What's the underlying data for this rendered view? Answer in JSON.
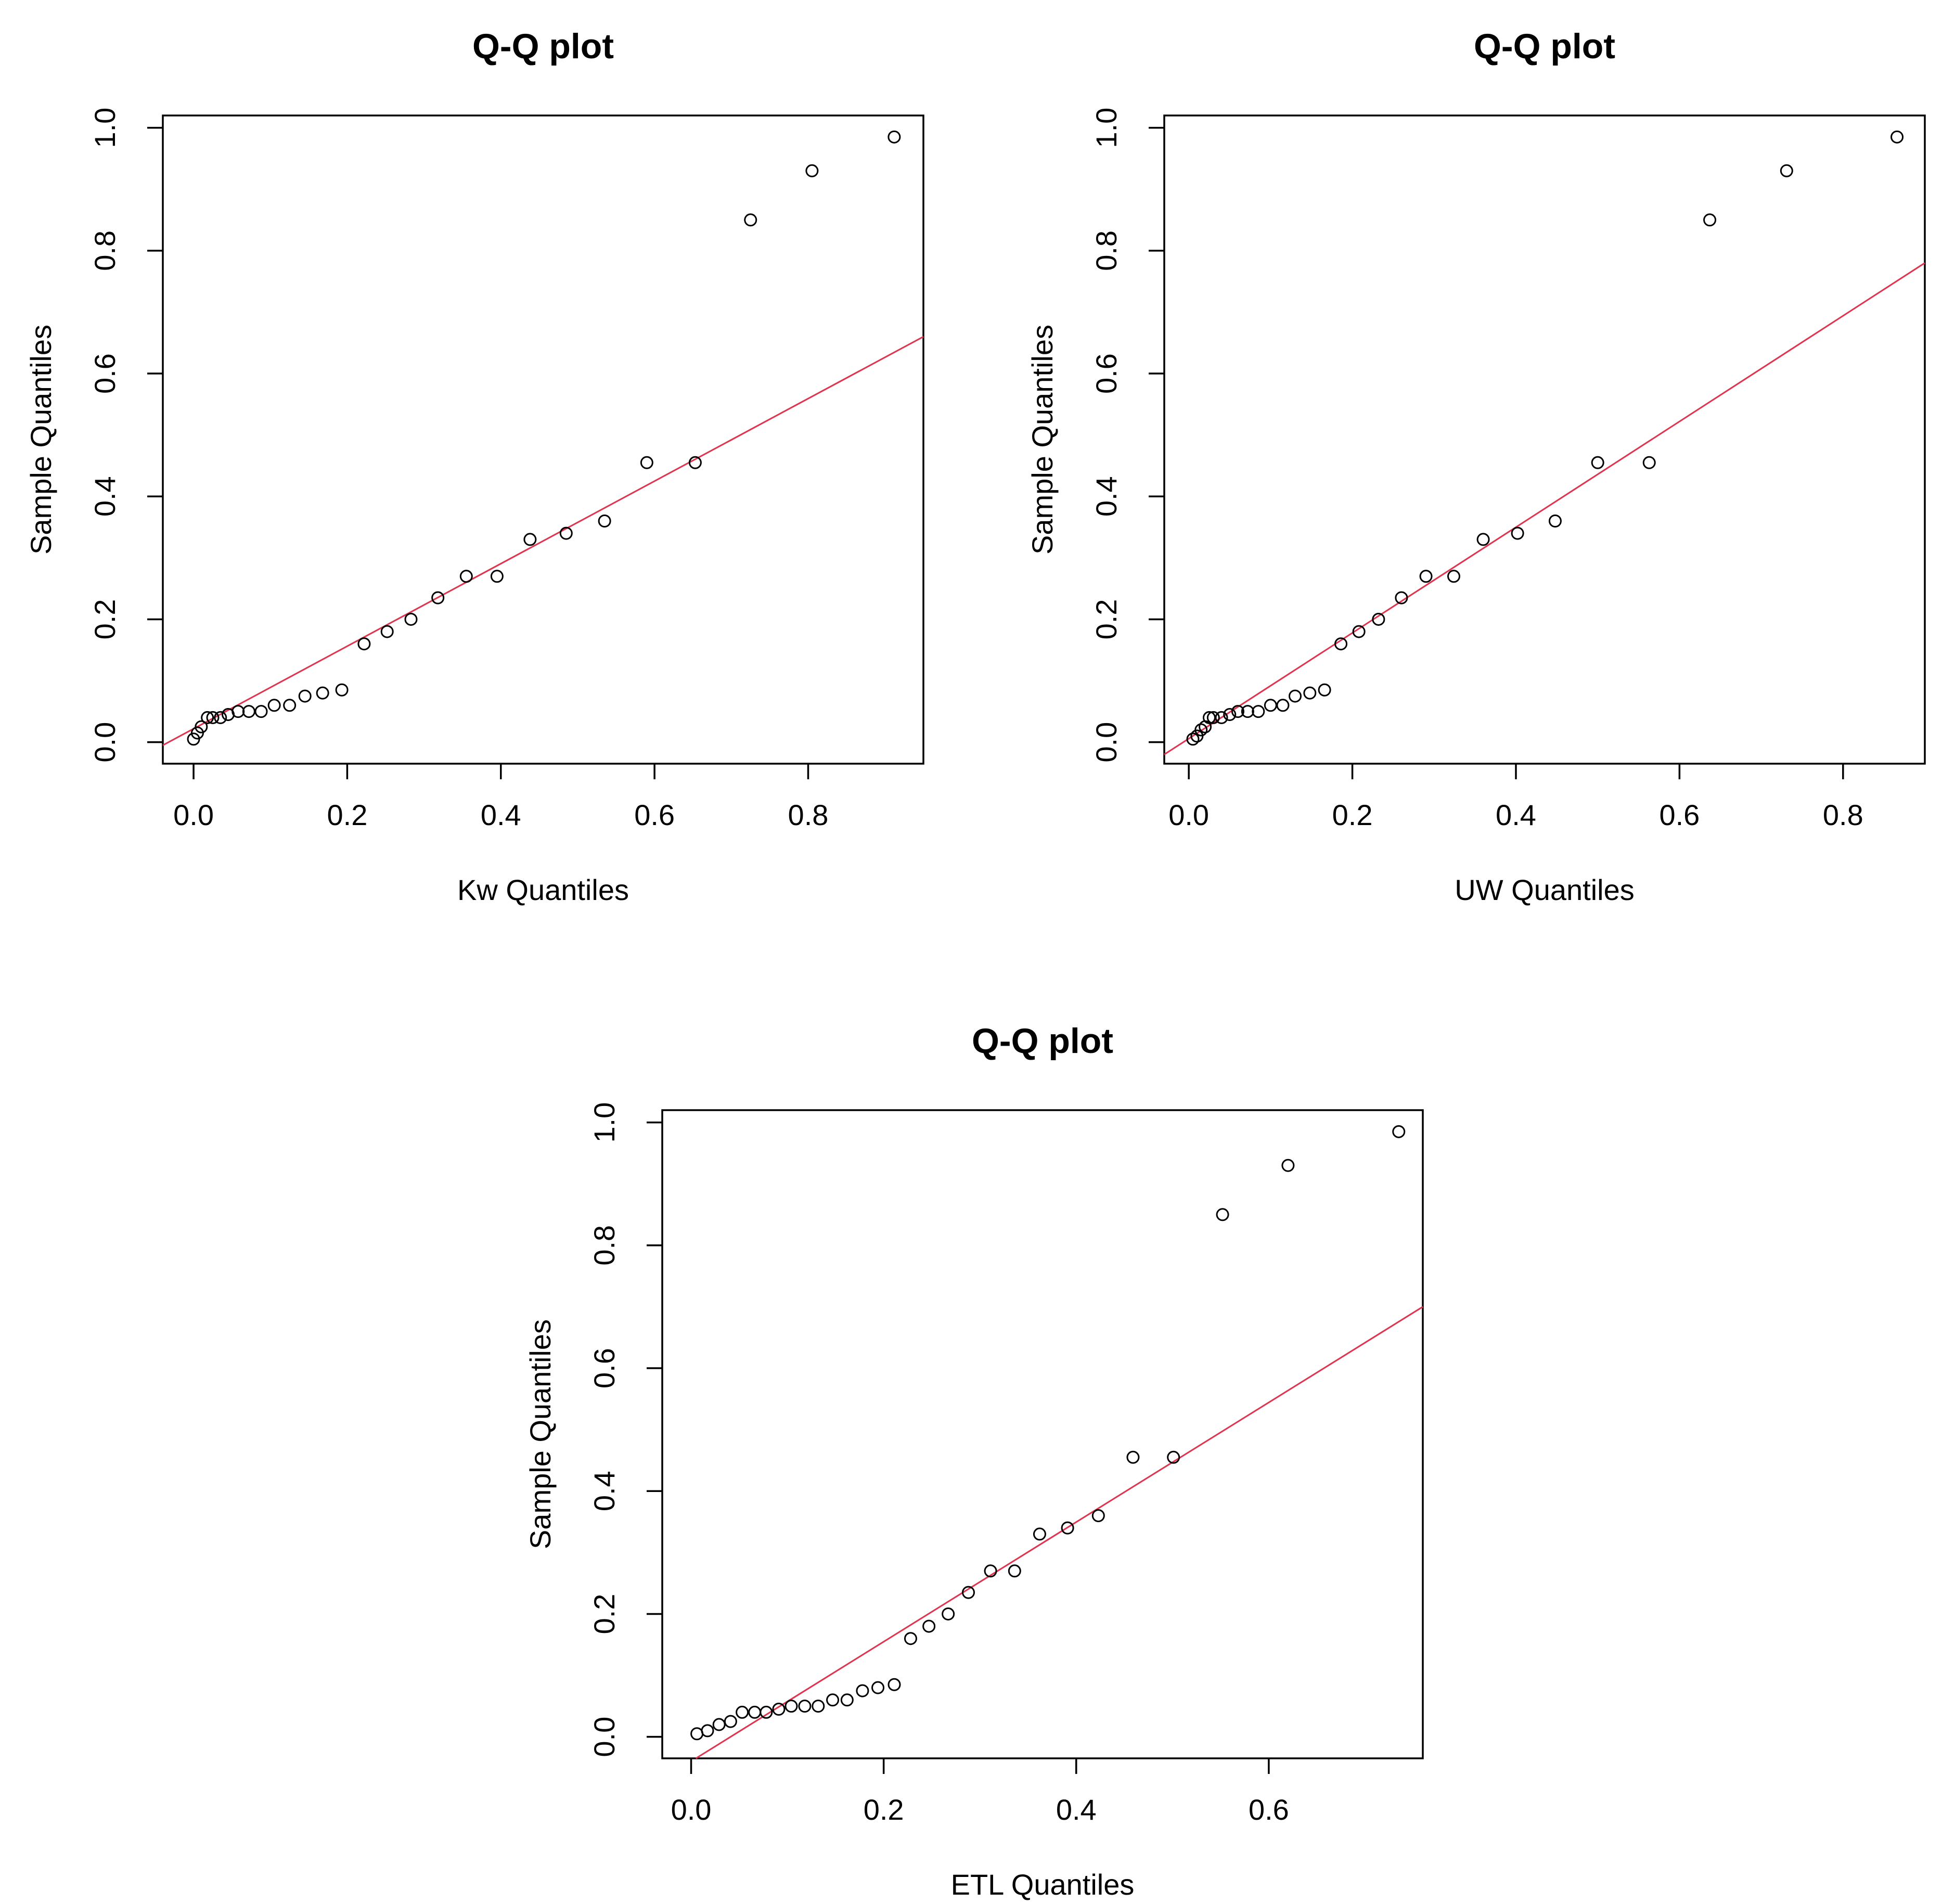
{
  "chart_data": [
    {
      "type": "scatter",
      "title": "Q-Q plot",
      "xlabel": "Kw Quantiles",
      "ylabel": "Sample Quantiles",
      "xlim": [
        -0.04,
        0.95
      ],
      "ylim": [
        -0.035,
        1.02
      ],
      "xticks": [
        "0.0",
        "0.2",
        "0.4",
        "0.6",
        "0.8"
      ],
      "yticks": [
        "0.0",
        "0.2",
        "0.4",
        "0.6",
        "0.8",
        "1.0"
      ],
      "grid": false,
      "reference_line": {
        "color": "#e0334e",
        "x": [
          -0.04,
          0.95
        ],
        "y": [
          -0.005,
          0.66
        ]
      },
      "points": {
        "x": [
          0.0,
          0.005,
          0.01,
          0.018,
          0.025,
          0.035,
          0.045,
          0.058,
          0.072,
          0.088,
          0.105,
          0.125,
          0.145,
          0.168,
          0.193,
          0.222,
          0.252,
          0.283,
          0.318,
          0.355,
          0.395,
          0.438,
          0.485,
          0.535,
          0.59,
          0.653,
          0.725,
          0.805,
          0.912
        ],
        "y": [
          0.005,
          0.015,
          0.025,
          0.04,
          0.04,
          0.04,
          0.045,
          0.05,
          0.05,
          0.05,
          0.06,
          0.06,
          0.075,
          0.08,
          0.085,
          0.16,
          0.18,
          0.2,
          0.235,
          0.27,
          0.27,
          0.33,
          0.34,
          0.36,
          0.455,
          0.455,
          0.85,
          0.93,
          0.985
        ]
      }
    },
    {
      "type": "scatter",
      "title": "Q-Q plot",
      "xlabel": "UW Quantiles",
      "ylabel": "Sample Quantiles",
      "xlim": [
        -0.03,
        0.9
      ],
      "ylim": [
        -0.035,
        1.02
      ],
      "xticks": [
        "0.0",
        "0.2",
        "0.4",
        "0.6",
        "0.8"
      ],
      "yticks": [
        "0.0",
        "0.2",
        "0.4",
        "0.6",
        "0.8",
        "1.0"
      ],
      "grid": false,
      "reference_line": {
        "color": "#e0334e",
        "x": [
          -0.03,
          0.9
        ],
        "y": [
          -0.02,
          0.78
        ]
      },
      "points": {
        "x": [
          0.005,
          0.01,
          0.015,
          0.02,
          0.025,
          0.03,
          0.04,
          0.05,
          0.06,
          0.072,
          0.085,
          0.1,
          0.115,
          0.13,
          0.148,
          0.166,
          0.186,
          0.208,
          0.232,
          0.26,
          0.29,
          0.324,
          0.36,
          0.402,
          0.448,
          0.5,
          0.563,
          0.637,
          0.731,
          0.866
        ],
        "y": [
          0.005,
          0.01,
          0.02,
          0.025,
          0.04,
          0.04,
          0.04,
          0.045,
          0.05,
          0.05,
          0.05,
          0.06,
          0.06,
          0.075,
          0.08,
          0.085,
          0.16,
          0.18,
          0.2,
          0.235,
          0.27,
          0.27,
          0.33,
          0.34,
          0.36,
          0.455,
          0.455,
          0.85,
          0.93,
          0.985
        ]
      }
    },
    {
      "type": "scatter",
      "title": "Q-Q plot",
      "xlabel": "ETL Quantiles",
      "ylabel": "Sample Quantiles",
      "xlim": [
        -0.03,
        0.76
      ],
      "ylim": [
        -0.035,
        1.02
      ],
      "xticks": [
        "0.0",
        "0.2",
        "0.4",
        "0.6"
      ],
      "yticks": [
        "0.0",
        "0.2",
        "0.4",
        "0.6",
        "0.8",
        "1.0"
      ],
      "grid": false,
      "reference_line": {
        "color": "#e0334e",
        "x": [
          0.005,
          0.76
        ],
        "y": [
          -0.035,
          0.7
        ]
      },
      "points": {
        "x": [
          0.006,
          0.017,
          0.029,
          0.041,
          0.053,
          0.066,
          0.078,
          0.091,
          0.104,
          0.118,
          0.132,
          0.147,
          0.162,
          0.178,
          0.194,
          0.211,
          0.228,
          0.247,
          0.267,
          0.288,
          0.311,
          0.336,
          0.362,
          0.391,
          0.423,
          0.459,
          0.501,
          0.552,
          0.62,
          0.735
        ],
        "y": [
          0.005,
          0.01,
          0.02,
          0.025,
          0.04,
          0.04,
          0.04,
          0.045,
          0.05,
          0.05,
          0.05,
          0.06,
          0.06,
          0.075,
          0.08,
          0.085,
          0.16,
          0.18,
          0.2,
          0.235,
          0.27,
          0.27,
          0.33,
          0.34,
          0.36,
          0.455,
          0.455,
          0.85,
          0.93,
          0.985
        ]
      }
    }
  ]
}
